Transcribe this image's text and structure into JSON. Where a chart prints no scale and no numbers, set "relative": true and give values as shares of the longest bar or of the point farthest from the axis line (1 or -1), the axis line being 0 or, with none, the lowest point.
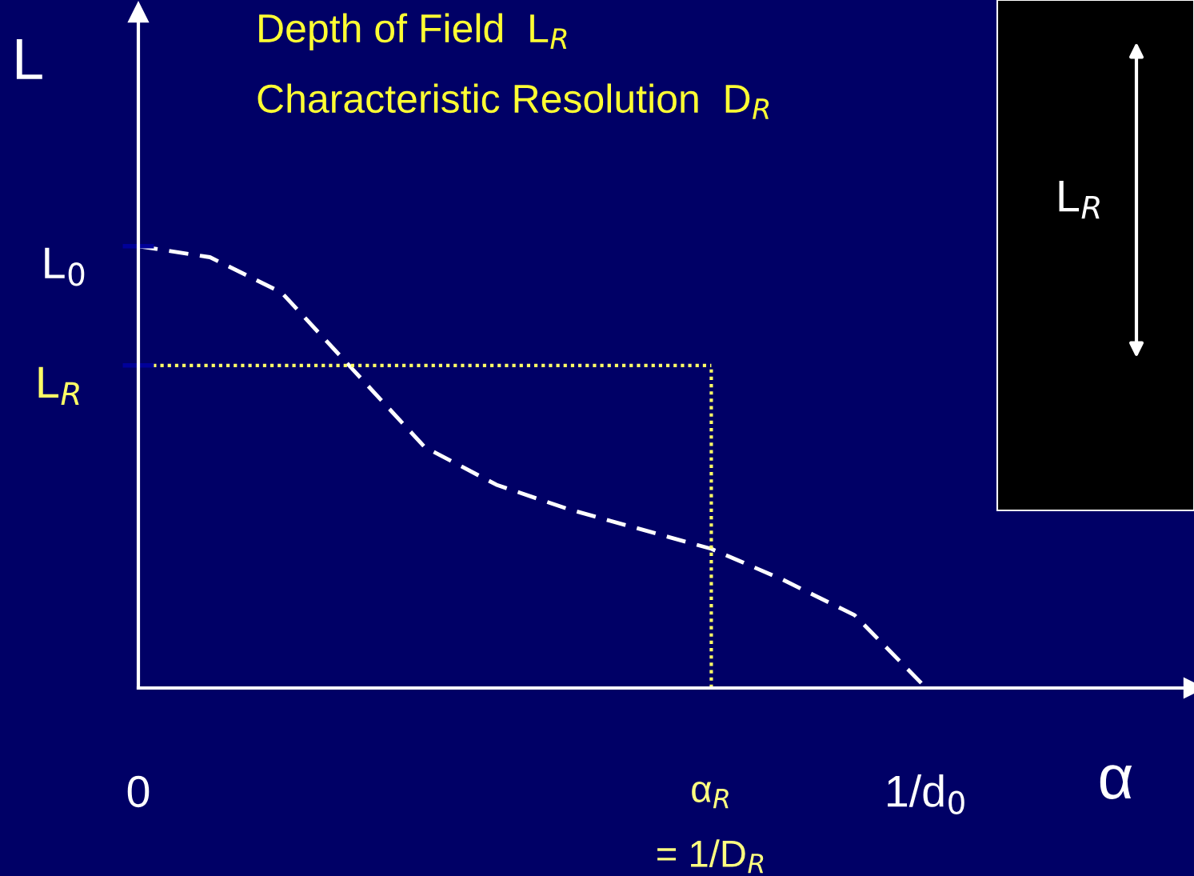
{
  "chart_data": {
    "type": "line",
    "relative": true,
    "title": "Depth of Field  L$_{R}$",
    "subtitle": "Characteristic Resolution  D$_{R}$",
    "xlabel": "α",
    "ylabel": "L",
    "categories": [
      "0",
      null,
      null,
      null,
      null,
      null,
      null,
      null,
      "α$_{R}$\n\n= 1/D$_{R}$",
      null,
      null,
      "1/d$_{0}$"
    ],
    "series": [
      {
        "color": "#ffffff",
        "line_style": "dashed",
        "values": [
          1.0,
          0.975,
          0.895,
          0.72,
          0.545,
          0.46,
          0.405,
          0.36,
          0.315,
          0.245,
          0.165,
          0
        ]
      }
    ],
    "ref_lines": [
      {
        "axis": "y",
        "value": 0.73,
        "label": "L$_{R}$",
        "color": "#ffff66",
        "line_style": "dotted"
      },
      {
        "axis": "x",
        "value": "α$_{R}$\n\n= 1/D$_{R}$",
        "color": "#ffff66",
        "line_style": "dotted"
      }
    ],
    "annotations": [
      {
        "text": "L$_{0}$",
        "x": "0",
        "y": 1.0
      },
      "L$_{R}$"
    ],
    "grid": false,
    "legend": false,
    "marker": "none"
  }
}
